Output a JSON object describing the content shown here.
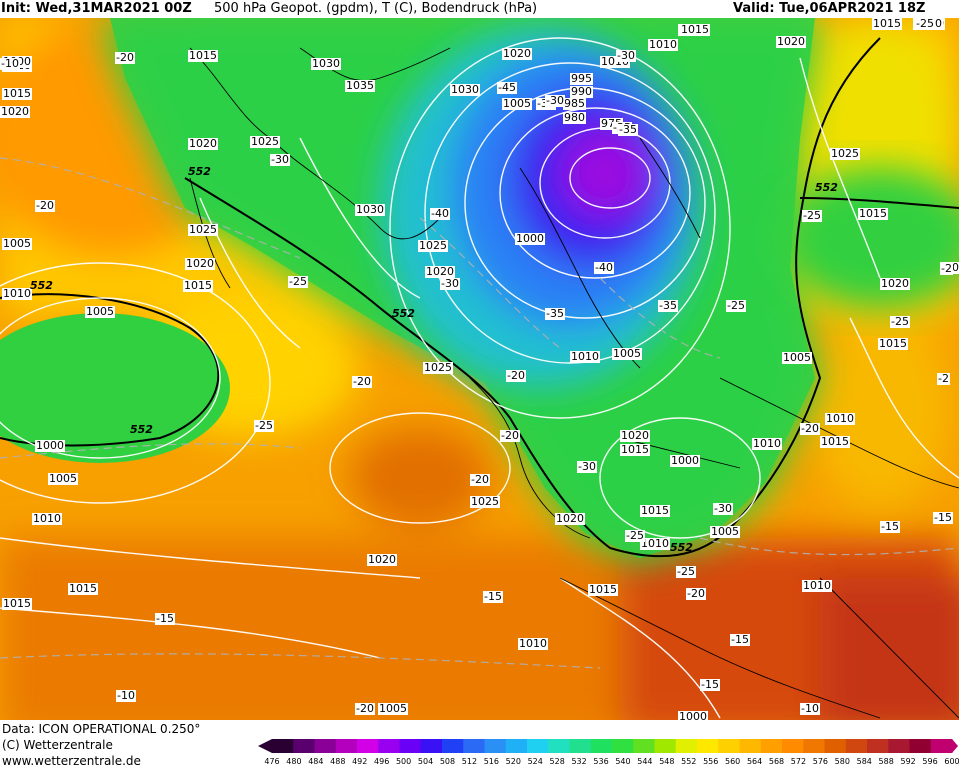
{
  "header": {
    "init_label": "Init: Wed,31MAR2021 00Z",
    "product": "500 hPa Geopot. (gpdm), T (C), Bodendruck (hPa)",
    "valid_label": "Valid: Tue,06APR2021 18Z"
  },
  "pressure_labels": [
    "1015",
    "1030",
    "1035",
    "1020",
    "1025",
    "1010",
    "1015",
    "1020",
    "1030",
    "1030",
    "1025",
    "1020",
    "1025",
    "1020",
    "1015",
    "1005",
    "1000",
    "1005",
    "1010",
    "1015",
    "1000",
    "1005",
    "1010",
    "1015",
    "1025",
    "1025",
    "1020",
    "1020",
    "1015",
    "1010",
    "1005",
    "1000",
    "1005",
    "1010",
    "1015",
    "1020",
    "1015",
    "1020",
    "1015",
    "1020",
    "1025",
    "1015",
    "1005",
    "1000",
    "1010",
    "1005",
    "1010",
    "1020",
    "1015",
    "1010",
    "1000",
    "995",
    "990",
    "1005",
    "985",
    "980",
    "975",
    "1010",
    "1015",
    "1020",
    "1010",
    "1020",
    "1015",
    "1015",
    "1010",
    "1015"
  ],
  "temp_labels": [
    "-20",
    "-20",
    "-30",
    "-25",
    "-20",
    "-25",
    "-20",
    "-20",
    "-15",
    "-15",
    "-10",
    "-40",
    "-30",
    "-45",
    "-35",
    "-30",
    "-35",
    "-40",
    "-35",
    "-35",
    "-25",
    "-30",
    "-20",
    "-25",
    "-25",
    "-20",
    "-30",
    "-25",
    "-20",
    "-15",
    "-15",
    "-15",
    "-10",
    "-20",
    "-15",
    "-25",
    "-20",
    "-25",
    "-30",
    "-35",
    "-10",
    "-2",
    "-2"
  ],
  "geopot_labels": [
    "552",
    "552",
    "552",
    "552",
    "552",
    "552"
  ],
  "colorbar": {
    "ticks": [
      "476",
      "480",
      "484",
      "488",
      "492",
      "496",
      "500",
      "504",
      "508",
      "512",
      "516",
      "520",
      "524",
      "528",
      "532",
      "536",
      "540",
      "544",
      "548",
      "552",
      "556",
      "560",
      "564",
      "568",
      "572",
      "576",
      "580",
      "584",
      "588",
      "592",
      "596",
      "600"
    ],
    "colors": [
      "#2a0033",
      "#5a006e",
      "#8a0096",
      "#b400be",
      "#d200e6",
      "#9a00f0",
      "#6a00f5",
      "#3a10f5",
      "#2040f5",
      "#2a6af5",
      "#2a90f5",
      "#20b0f5",
      "#20d0f0",
      "#20e0c0",
      "#20e090",
      "#20e060",
      "#30e040",
      "#60e020",
      "#a0e800",
      "#e0f000",
      "#ffe800",
      "#ffd000",
      "#ffb800",
      "#ffa000",
      "#ff8c00",
      "#f07800",
      "#e06000",
      "#d04810",
      "#c03020",
      "#a81830",
      "#900030",
      "#c0006e"
    ]
  },
  "footer": {
    "data_line": "Data: ICON OPERATIONAL 0.250°",
    "copyright_line": "(C) Wetterzentrale",
    "url_line": "www.wetterzentrale.de"
  }
}
